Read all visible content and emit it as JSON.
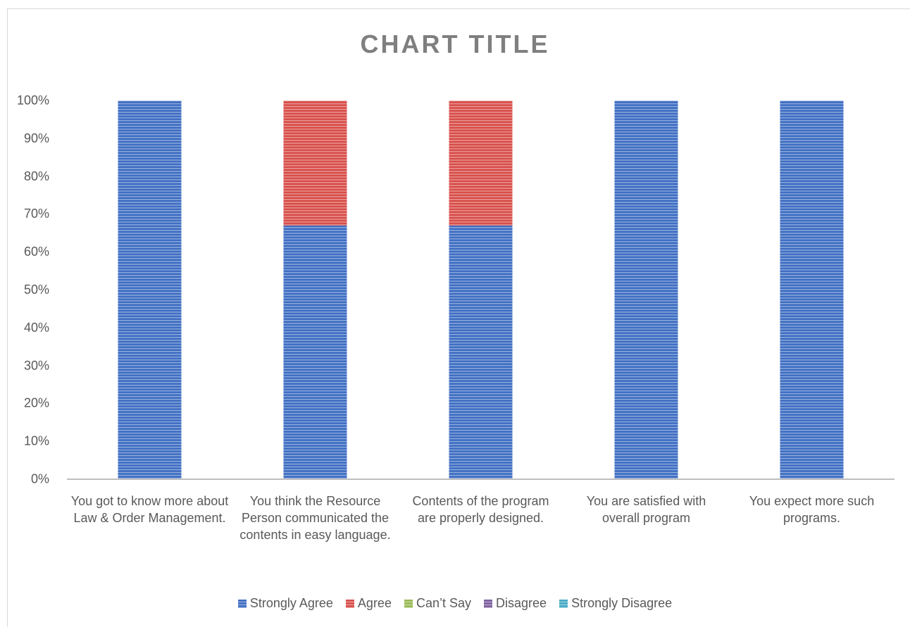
{
  "chart_data": {
    "type": "stacked_bar_percent",
    "title": "CHART TITLE",
    "categories": [
      "You got to know more about Law & Order Management.",
      "You think the Resource Person communicated the contents in easy language.",
      "Contents of the program are properly designed.",
      "You are satisfied with overall program",
      "You expect more such programs."
    ],
    "series": [
      {
        "name": "Strongly Agree",
        "color": "#4472c4",
        "values": [
          100,
          67,
          67,
          100,
          100
        ]
      },
      {
        "name": "Agree",
        "color": "#d9534f",
        "values": [
          0,
          33,
          33,
          0,
          0
        ]
      },
      {
        "name": "Can’t Say",
        "color": "#9bbb59",
        "values": [
          0,
          0,
          0,
          0,
          0
        ]
      },
      {
        "name": "Disagree",
        "color": "#8064a2",
        "values": [
          0,
          0,
          0,
          0,
          0
        ]
      },
      {
        "name": "Strongly Disagree",
        "color": "#4bacc6",
        "values": [
          0,
          0,
          0,
          0,
          0
        ]
      }
    ],
    "ylim": [
      0,
      100
    ],
    "yticks": [
      {
        "value": 0,
        "label": "0%"
      },
      {
        "value": 10,
        "label": "10%"
      },
      {
        "value": 20,
        "label": "20%"
      },
      {
        "value": 30,
        "label": "30%"
      },
      {
        "value": 40,
        "label": "40%"
      },
      {
        "value": 50,
        "label": "50%"
      },
      {
        "value": 60,
        "label": "60%"
      },
      {
        "value": 70,
        "label": "70%"
      },
      {
        "value": 80,
        "label": "80%"
      },
      {
        "value": 90,
        "label": "90%"
      },
      {
        "value": 100,
        "label": "100%"
      }
    ],
    "grid": false,
    "legend": "bottom"
  }
}
